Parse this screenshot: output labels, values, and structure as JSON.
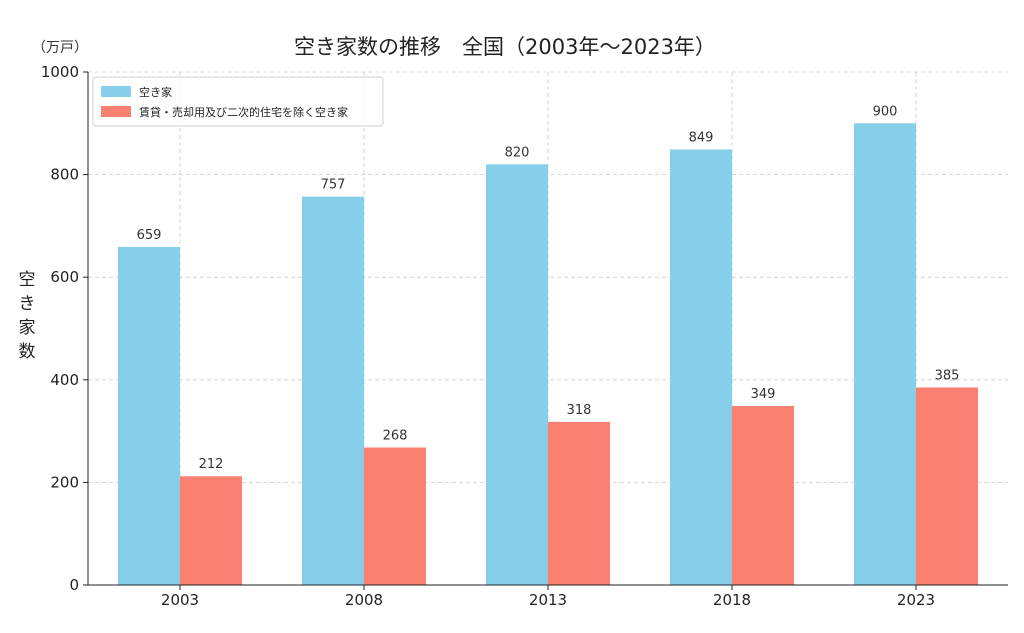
{
  "chart_data": {
    "type": "bar",
    "title": "空き家数の推移　全国（2003年〜2023年）",
    "unit_label": "（万戸）",
    "ylabel": "空き家数",
    "categories": [
      "2003",
      "2008",
      "2013",
      "2018",
      "2023"
    ],
    "ylim": [
      0,
      1000
    ],
    "yticks": [
      0,
      200,
      400,
      600,
      800,
      1000
    ],
    "grid": true,
    "legend_position": "top-left",
    "series": [
      {
        "name": "空き家",
        "color": "#87CEEB",
        "values": [
          659,
          757,
          820,
          849,
          900
        ]
      },
      {
        "name": "賃貸・売却用及び二次的住宅を除く空き家",
        "color": "#FA8072",
        "values": [
          212,
          268,
          318,
          349,
          385
        ]
      }
    ]
  }
}
